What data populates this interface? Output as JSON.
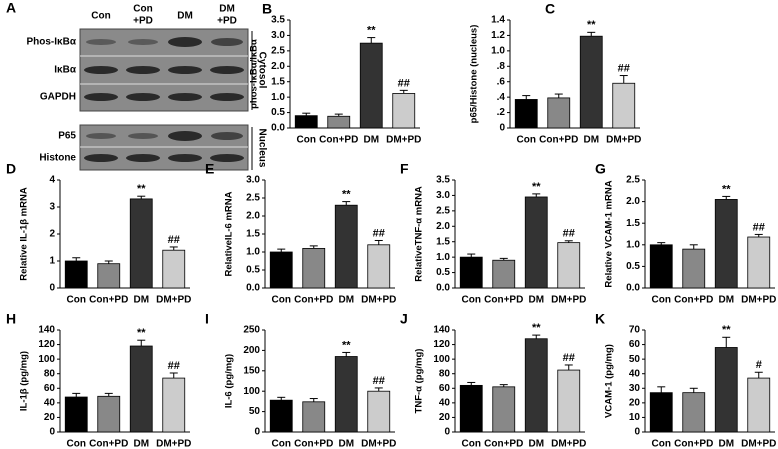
{
  "blot": {
    "panel": "A",
    "columns": [
      [
        "Con"
      ],
      [
        "Con",
        "+PD"
      ],
      [
        "DM"
      ],
      [
        "DM",
        "+PD"
      ]
    ],
    "rows": [
      "Phos-IκBα",
      "IκBα",
      "GAPDH",
      "P65",
      "Histone"
    ],
    "fractions": [
      "Cytosol",
      "Nucleus"
    ]
  },
  "chart_data": [
    {
      "type": "bar",
      "panel": "B",
      "ylabel": "phos-IκBα/IκBα",
      "categories": [
        "Con",
        "Con+PD",
        "DM",
        "DM+PD"
      ],
      "values": [
        0.4,
        0.38,
        2.75,
        1.12
      ],
      "errors": [
        0.08,
        0.07,
        0.18,
        0.1
      ],
      "annotations": [
        null,
        null,
        "**",
        "##"
      ],
      "colors": [
        "#000000",
        "#888888",
        "#333333",
        "#cccccc"
      ],
      "ylim": [
        0,
        3.5
      ],
      "yticks": [
        {
          "value": 0,
          "label": "0.0"
        },
        0.5,
        {
          "value": 1,
          "label": "1.0"
        },
        1.5,
        {
          "value": 2,
          "label": "2.0"
        },
        2.5,
        {
          "value": 3,
          "label": "3.0"
        },
        3.5
      ]
    },
    {
      "type": "bar",
      "panel": "C",
      "ylabel": "p65/Histone (nucleus)",
      "categories": [
        "Con",
        "Con+PD",
        "DM",
        "DM+PD"
      ],
      "values": [
        0.37,
        0.39,
        1.19,
        0.58
      ],
      "errors": [
        0.05,
        0.05,
        0.05,
        0.1
      ],
      "annotations": [
        null,
        null,
        "**",
        "##"
      ],
      "colors": [
        "#000000",
        "#888888",
        "#333333",
        "#cccccc"
      ],
      "ylim": [
        0,
        1.4
      ],
      "yticks": [
        0,
        {
          "value": 0.2,
          "label": ".2"
        },
        {
          "value": 0.4,
          "label": ".4"
        },
        {
          "value": 0.6,
          "label": ".6"
        },
        {
          "value": 0.8,
          "label": ".8"
        },
        {
          "value": 1,
          "label": "1.0"
        },
        1.2,
        1.4
      ]
    },
    {
      "type": "bar",
      "panel": "D",
      "ylabel": "Relative IL-1β mRNA",
      "categories": [
        "Con",
        "Con+PD",
        "DM",
        "DM+PD"
      ],
      "values": [
        1.0,
        0.9,
        3.3,
        1.4
      ],
      "errors": [
        0.12,
        0.1,
        0.1,
        0.12
      ],
      "annotations": [
        null,
        null,
        "**",
        "##"
      ],
      "colors": [
        "#000000",
        "#888888",
        "#333333",
        "#cccccc"
      ],
      "ylim": [
        0,
        4
      ],
      "yticks": [
        0,
        1,
        2,
        3,
        4
      ]
    },
    {
      "type": "bar",
      "panel": "E",
      "ylabel": "RelativeIL-6 mRNA",
      "categories": [
        "Con",
        "Con+PD",
        "DM",
        "DM+PD"
      ],
      "values": [
        1.0,
        1.1,
        2.3,
        1.2
      ],
      "errors": [
        0.08,
        0.07,
        0.1,
        0.12
      ],
      "annotations": [
        null,
        null,
        "**",
        "##"
      ],
      "colors": [
        "#000000",
        "#888888",
        "#333333",
        "#cccccc"
      ],
      "ylim": [
        0,
        3
      ],
      "yticks": [
        {
          "value": 0,
          "label": "0.0"
        },
        0.5,
        {
          "value": 1,
          "label": "1.0"
        },
        1.5,
        {
          "value": 2,
          "label": "2.0"
        },
        2.5,
        {
          "value": 3,
          "label": "3.0"
        }
      ]
    },
    {
      "type": "bar",
      "panel": "F",
      "ylabel": "RelativeTNF-α mRNA",
      "categories": [
        "Con",
        "Con+PD",
        "DM",
        "DM+PD"
      ],
      "values": [
        1.0,
        0.9,
        2.95,
        1.47
      ],
      "errors": [
        0.1,
        0.06,
        0.1,
        0.06
      ],
      "annotations": [
        null,
        null,
        "**",
        "##"
      ],
      "colors": [
        "#000000",
        "#888888",
        "#333333",
        "#cccccc"
      ],
      "ylim": [
        0,
        3.5
      ],
      "yticks": [
        {
          "value": 0,
          "label": "0.0"
        },
        0.5,
        {
          "value": 1,
          "label": "1.0"
        },
        1.5,
        {
          "value": 2,
          "label": "2.0"
        },
        2.5,
        {
          "value": 3,
          "label": "3.0"
        },
        3.5
      ]
    },
    {
      "type": "bar",
      "panel": "G",
      "ylabel": "Relative VCAM-1 mRNA",
      "categories": [
        "Con",
        "Con+PD",
        "DM",
        "DM+PD"
      ],
      "values": [
        1.0,
        0.9,
        2.05,
        1.18
      ],
      "errors": [
        0.05,
        0.1,
        0.07,
        0.06
      ],
      "annotations": [
        null,
        null,
        "**",
        "##"
      ],
      "colors": [
        "#000000",
        "#888888",
        "#333333",
        "#cccccc"
      ],
      "ylim": [
        0,
        2.5
      ],
      "yticks": [
        {
          "value": 0,
          "label": "0.0"
        },
        0.5,
        {
          "value": 1,
          "label": "1.0"
        },
        1.5,
        {
          "value": 2,
          "label": "2.0"
        },
        2.5
      ]
    },
    {
      "type": "bar",
      "panel": "H",
      "ylabel": "IL-1β (pg/mg)",
      "categories": [
        "Con",
        "Con+PD",
        "DM",
        "DM+PD"
      ],
      "values": [
        48,
        49,
        118,
        74
      ],
      "errors": [
        5,
        4,
        8,
        7
      ],
      "annotations": [
        null,
        null,
        "**",
        "##"
      ],
      "colors": [
        "#000000",
        "#888888",
        "#333333",
        "#cccccc"
      ],
      "ylim": [
        0,
        140
      ],
      "yticks": [
        0,
        20,
        40,
        60,
        80,
        100,
        120,
        140
      ]
    },
    {
      "type": "bar",
      "panel": "I",
      "ylabel": "IL-6 (pg/mg)",
      "categories": [
        "Con",
        "Con+PD",
        "DM",
        "DM+PD"
      ],
      "values": [
        78,
        74,
        185,
        100
      ],
      "errors": [
        7,
        8,
        10,
        8
      ],
      "annotations": [
        null,
        null,
        "**",
        "##"
      ],
      "colors": [
        "#000000",
        "#888888",
        "#333333",
        "#cccccc"
      ],
      "ylim": [
        0,
        250
      ],
      "yticks": [
        0,
        50,
        100,
        150,
        200,
        250
      ]
    },
    {
      "type": "bar",
      "panel": "J",
      "ylabel": "TNF-α (pg/mg)",
      "categories": [
        "Con",
        "Con+PD",
        "DM",
        "DM+PD"
      ],
      "values": [
        64,
        62,
        128,
        85
      ],
      "errors": [
        4,
        3,
        5,
        7
      ],
      "annotations": [
        null,
        null,
        "**",
        "##"
      ],
      "colors": [
        "#000000",
        "#888888",
        "#333333",
        "#cccccc"
      ],
      "ylim": [
        0,
        140
      ],
      "yticks": [
        0,
        20,
        40,
        60,
        80,
        100,
        120,
        140
      ]
    },
    {
      "type": "bar",
      "panel": "K",
      "ylabel": "VCAM-1 (pg/mg)",
      "categories": [
        "Con",
        "Con+PD",
        "DM",
        "DM+PD"
      ],
      "values": [
        27,
        27,
        58,
        37
      ],
      "errors": [
        4,
        3,
        7,
        4
      ],
      "annotations": [
        null,
        null,
        "**",
        "#"
      ],
      "colors": [
        "#000000",
        "#888888",
        "#333333",
        "#cccccc"
      ],
      "ylim": [
        0,
        70
      ],
      "yticks": [
        0,
        10,
        20,
        30,
        40,
        50,
        60,
        70
      ]
    }
  ]
}
